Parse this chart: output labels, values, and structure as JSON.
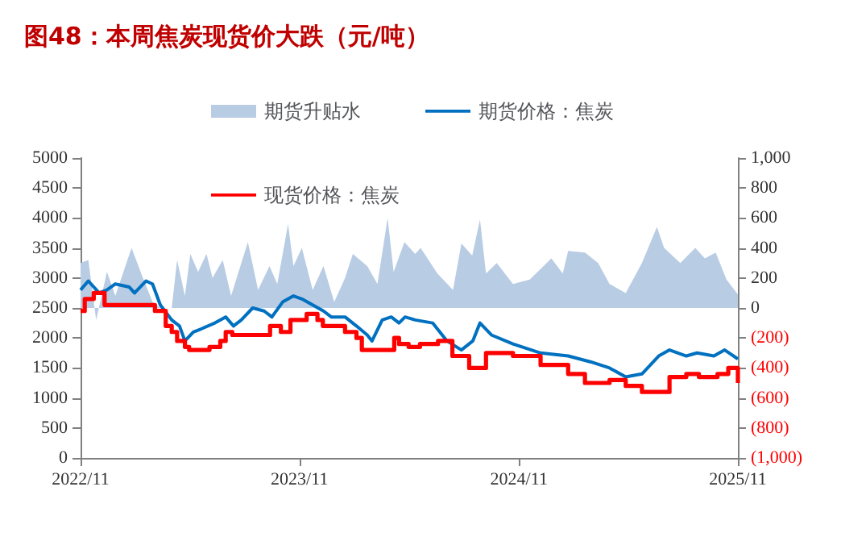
{
  "chart_data": {
    "type": "line",
    "title": "图48：本周焦炭现货价大跌（元/吨）",
    "legend": "top",
    "grid": false,
    "marker": "none",
    "xlim": [
      "2022-11-01",
      "2025-11-01"
    ],
    "xticks": [
      {
        "value": "2022-11-01",
        "label": "2022/11"
      },
      {
        "value": "2023-11-01",
        "label": "2023/11"
      },
      {
        "value": "2024-11-01",
        "label": "2024/11"
      },
      {
        "value": "2025-11-01",
        "label": "2025/11"
      }
    ],
    "ylim": [
      0,
      5000
    ],
    "yticks": [
      0,
      500,
      1000,
      1500,
      2000,
      2500,
      3000,
      3500,
      4000,
      4500,
      5000
    ],
    "y2lim": [
      -1000,
      1000
    ],
    "y2ticks": [
      {
        "value": -1000,
        "label": "(1,000)"
      },
      {
        "value": -800,
        "label": "(800)"
      },
      {
        "value": -600,
        "label": "(600)"
      },
      {
        "value": -400,
        "label": "(400)"
      },
      {
        "value": -200,
        "label": "(200)"
      },
      0,
      {
        "value": 200,
        "label": "200"
      },
      {
        "value": 400,
        "label": "400"
      },
      {
        "value": 600,
        "label": "600"
      },
      {
        "value": 800,
        "label": "800"
      },
      {
        "value": 1000,
        "label": "1,000"
      }
    ],
    "series": [
      {
        "name": "期货升贴水",
        "type": "area",
        "axis": "y2",
        "color": "#b8cce4",
        "x": [
          "2022-11-01",
          "2022-11-14",
          "2022-11-27",
          "2022-12-15",
          "2022-12-29",
          "2023-01-25",
          "2023-02-13",
          "2023-03-01",
          "2023-03-14",
          "2023-04-02",
          "2023-04-11",
          "2023-04-24",
          "2023-05-03",
          "2023-05-16",
          "2023-05-30",
          "2023-06-09",
          "2023-06-26",
          "2023-07-10",
          "2023-08-07",
          "2023-08-24",
          "2023-09-12",
          "2023-09-25",
          "2023-10-13",
          "2023-10-22",
          "2023-11-05",
          "2023-11-23",
          "2023-12-11",
          "2023-12-29",
          "2024-01-16",
          "2024-01-29",
          "2024-02-22",
          "2024-03-10",
          "2024-03-27",
          "2024-04-06",
          "2024-04-24",
          "2024-05-12",
          "2024-05-21",
          "2024-06-18",
          "2024-07-14",
          "2024-07-28",
          "2024-08-15",
          "2024-08-28",
          "2024-09-07",
          "2024-09-25",
          "2024-10-22",
          "2024-11-19",
          "2024-12-25",
          "2025-01-13",
          "2025-01-22",
          "2025-02-19",
          "2025-03-13",
          "2025-04-01",
          "2025-04-28",
          "2025-05-25",
          "2025-06-19",
          "2025-07-01",
          "2025-07-28",
          "2025-08-22",
          "2025-09-07",
          "2025-09-25",
          "2025-10-13",
          "2025-11-01"
        ],
        "values": [
          300,
          320,
          -80,
          240,
          80,
          400,
          200,
          40,
          0,
          0,
          320,
          80,
          360,
          240,
          360,
          200,
          320,
          80,
          440,
          120,
          280,
          160,
          560,
          280,
          400,
          120,
          280,
          40,
          200,
          360,
          280,
          160,
          600,
          240,
          440,
          360,
          400,
          230,
          120,
          430,
          350,
          590,
          230,
          300,
          160,
          190,
          330,
          230,
          380,
          370,
          300,
          160,
          100,
          300,
          540,
          400,
          300,
          400,
          330,
          370,
          190,
          90
        ]
      },
      {
        "name": "期货价格：焦炭",
        "color": "#0070c0",
        "x": [
          "2022-11-01",
          "2022-11-14",
          "2022-12-02",
          "2022-12-15",
          "2022-12-29",
          "2023-01-21",
          "2023-01-30",
          "2023-02-18",
          "2023-03-01",
          "2023-03-14",
          "2023-04-02",
          "2023-04-15",
          "2023-04-24",
          "2023-05-08",
          "2023-05-21",
          "2023-06-13",
          "2023-07-01",
          "2023-07-14",
          "2023-07-27",
          "2023-08-15",
          "2023-09-03",
          "2023-09-16",
          "2023-10-04",
          "2023-10-22",
          "2023-11-05",
          "2023-11-23",
          "2023-12-11",
          "2023-12-24",
          "2024-01-16",
          "2024-02-04",
          "2024-02-22",
          "2024-03-01",
          "2024-03-18",
          "2024-04-02",
          "2024-04-15",
          "2024-04-25",
          "2024-05-12",
          "2024-06-10",
          "2024-07-04",
          "2024-07-28",
          "2024-08-16",
          "2024-08-28",
          "2024-09-16",
          "2024-10-22",
          "2024-12-07",
          "2025-01-22",
          "2025-03-01",
          "2025-04-01",
          "2025-04-28",
          "2025-05-25",
          "2025-06-22",
          "2025-07-10",
          "2025-08-07",
          "2025-08-25",
          "2025-09-22",
          "2025-10-10",
          "2025-11-01"
        ],
        "values": [
          2800,
          2950,
          2750,
          2800,
          2900,
          2850,
          2750,
          2950,
          2900,
          2550,
          2300,
          2200,
          1950,
          2100,
          2150,
          2250,
          2350,
          2200,
          2300,
          2500,
          2450,
          2350,
          2600,
          2700,
          2650,
          2550,
          2450,
          2350,
          2350,
          2200,
          2050,
          1950,
          2300,
          2350,
          2250,
          2350,
          2300,
          2250,
          1950,
          1800,
          1950,
          2250,
          2050,
          1900,
          1750,
          1700,
          1600,
          1500,
          1350,
          1400,
          1700,
          1800,
          1700,
          1750,
          1700,
          1800,
          1650
        ]
      },
      {
        "name": "现货价格：焦炭",
        "type": "step",
        "color": "#ff0000",
        "x": [
          "2022-11-01",
          "2022-11-08",
          "2022-11-23",
          "2022-12-11",
          "2023-03-05",
          "2023-03-23",
          "2023-04-02",
          "2023-04-11",
          "2023-04-24",
          "2023-05-01",
          "2023-06-04",
          "2023-06-22",
          "2023-07-01",
          "2023-07-12",
          "2023-09-13",
          "2023-10-01",
          "2023-10-17",
          "2023-11-13",
          "2023-12-01",
          "2023-12-10",
          "2024-01-16",
          "2024-02-04",
          "2024-02-13",
          "2024-04-07",
          "2024-04-15",
          "2024-05-01",
          "2024-05-20",
          "2024-06-19",
          "2024-07-13",
          "2024-08-10",
          "2024-09-07",
          "2024-10-22",
          "2024-12-07",
          "2025-01-22",
          "2025-02-19",
          "2025-04-01",
          "2025-04-28",
          "2025-05-25",
          "2025-06-13",
          "2025-07-10",
          "2025-08-07",
          "2025-08-28",
          "2025-09-28",
          "2025-10-16",
          "2025-11-01"
        ],
        "values": [
          2450,
          2650,
          2750,
          2550,
          2450,
          2200,
          2100,
          1950,
          1850,
          1800,
          1850,
          1950,
          2100,
          2050,
          2200,
          2100,
          2300,
          2400,
          2300,
          2200,
          2100,
          2000,
          1800,
          2000,
          1900,
          1850,
          1900,
          1950,
          1700,
          1500,
          1750,
          1700,
          1550,
          1400,
          1250,
          1300,
          1200,
          1100,
          1100,
          1350,
          1400,
          1350,
          1400,
          1500,
          1250
        ]
      }
    ]
  }
}
